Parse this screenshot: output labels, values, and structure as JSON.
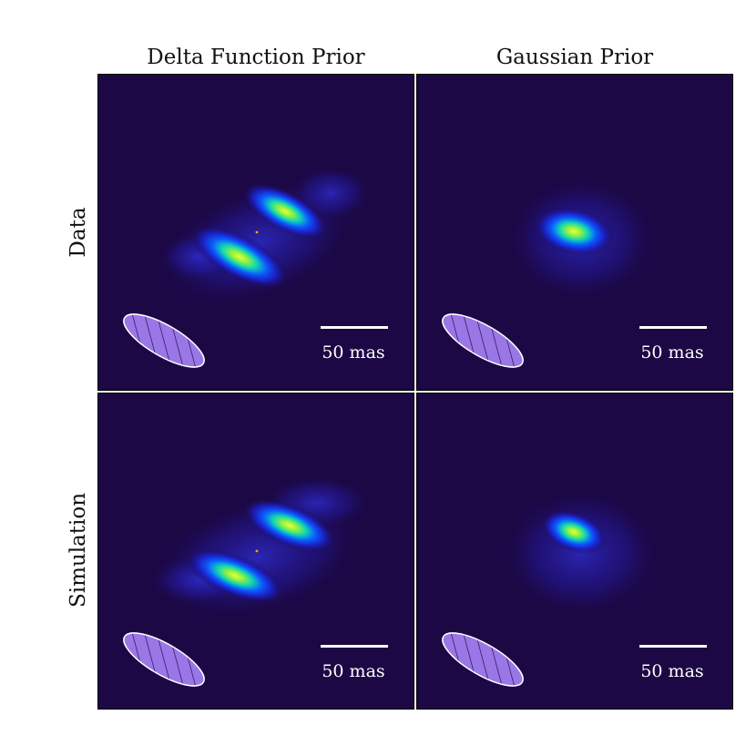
{
  "columns": [
    "Delta Function Prior",
    "Gaussian Prior"
  ],
  "rows": [
    "Data",
    "Simulation"
  ],
  "panels": [
    {
      "scale_label": "50 mas"
    },
    {
      "scale_label": "50 mas"
    },
    {
      "scale_label": "50 mas"
    },
    {
      "scale_label": "50 mas"
    }
  ],
  "colors": {
    "background": "#1c0845",
    "beam_fill": "#9b76e6",
    "beam_edge": "#ffffff",
    "center_marker": "#ffa500",
    "text_on_image": "#ffffff"
  }
}
